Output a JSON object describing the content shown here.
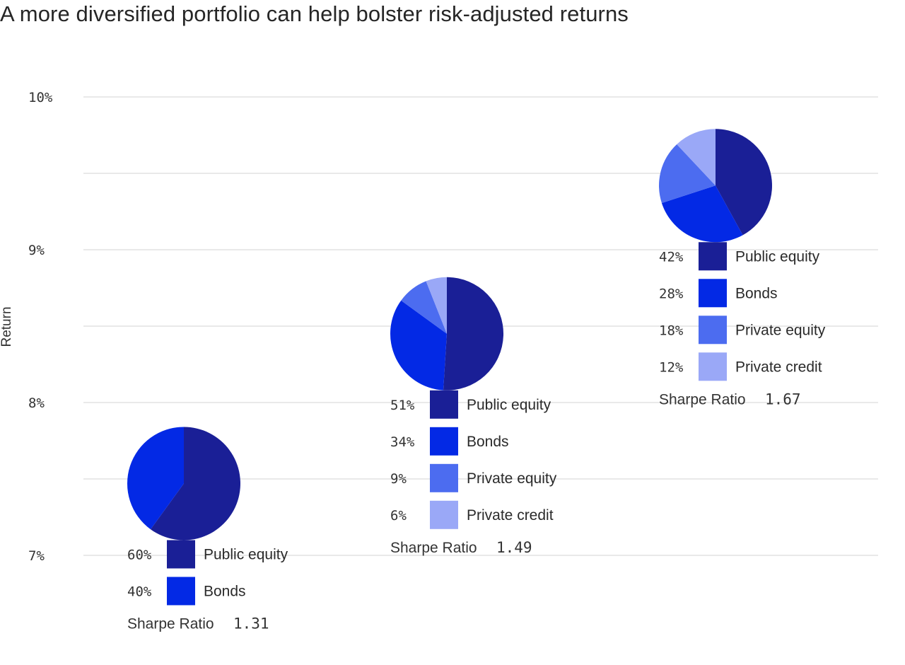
{
  "chart_data": {
    "type": "pie",
    "title": "A more diversified portfolio can help bolster risk-adjusted returns",
    "ylabel": "Return",
    "yticks": [
      {
        "value": 10,
        "label": "10%"
      },
      {
        "value": 9,
        "label": "9%"
      },
      {
        "value": 8,
        "label": "8%"
      },
      {
        "value": 7,
        "label": "7%"
      }
    ],
    "ylim": [
      6.53,
      10.2
    ],
    "grid": true,
    "colors": {
      "Public equity": "#1a1f96",
      "Bonds": "#0329e5",
      "Private equity": "#4c6cf0",
      "Private credit": "#9aa8f7"
    },
    "sharpe_label": "Sharpe Ratio",
    "portfolios": [
      {
        "return": 7.47,
        "sharpe": "1.31",
        "slices": [
          {
            "name": "Public equity",
            "value": 60,
            "label": "60%"
          },
          {
            "name": "Bonds",
            "value": 40,
            "label": "40%"
          }
        ]
      },
      {
        "return": 8.45,
        "sharpe": "1.49",
        "slices": [
          {
            "name": "Public equity",
            "value": 51,
            "label": "51%"
          },
          {
            "name": "Bonds",
            "value": 34,
            "label": "34%"
          },
          {
            "name": "Private equity",
            "value": 9,
            "label": "9%"
          },
          {
            "name": "Private credit",
            "value": 6,
            "label": "6%"
          }
        ]
      },
      {
        "return": 9.42,
        "sharpe": "1.67",
        "slices": [
          {
            "name": "Public equity",
            "value": 42,
            "label": "42%"
          },
          {
            "name": "Bonds",
            "value": 28,
            "label": "28%"
          },
          {
            "name": "Private equity",
            "value": 18,
            "label": "18%"
          },
          {
            "name": "Private credit",
            "value": 12,
            "label": "12%"
          }
        ]
      }
    ]
  }
}
